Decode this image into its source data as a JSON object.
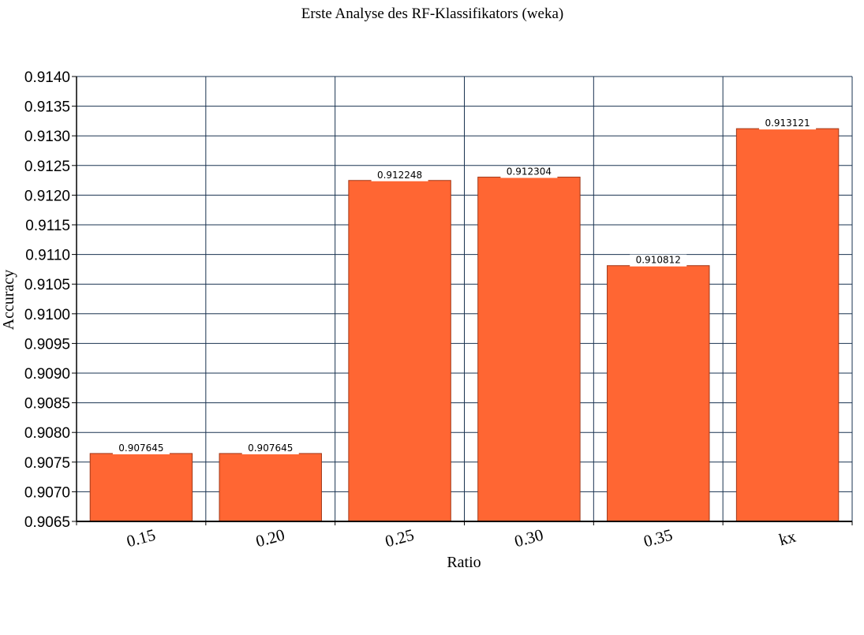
{
  "chart_data": {
    "type": "bar",
    "title": "Erste Analyse des RF-Klassifikators (weka)",
    "xlabel": "Ratio",
    "ylabel": "Accuracy",
    "categories": [
      "0.15",
      "0.20",
      "0.25",
      "0.30",
      "0.35",
      "kx"
    ],
    "values": [
      0.907645,
      0.907645,
      0.912248,
      0.912304,
      0.910812,
      0.913121
    ],
    "data_labels": [
      "0.907645",
      "0.907645",
      "0.912248",
      "0.912304",
      "0.910812",
      "0.913121"
    ],
    "yticks": [
      "0.9065",
      "0.9070",
      "0.9075",
      "0.9080",
      "0.9085",
      "0.9090",
      "0.9095",
      "0.9100",
      "0.9105",
      "0.9110",
      "0.9115",
      "0.9120",
      "0.9125",
      "0.9130",
      "0.9135",
      "0.9140"
    ],
    "ylim": [
      0.9065,
      0.914
    ],
    "grid": true,
    "legend": "none",
    "colors": {
      "bar": "#ff6633",
      "bar_stroke": "#a03818",
      "grid": "#1a3350",
      "label_bg": "#ffffff"
    }
  }
}
